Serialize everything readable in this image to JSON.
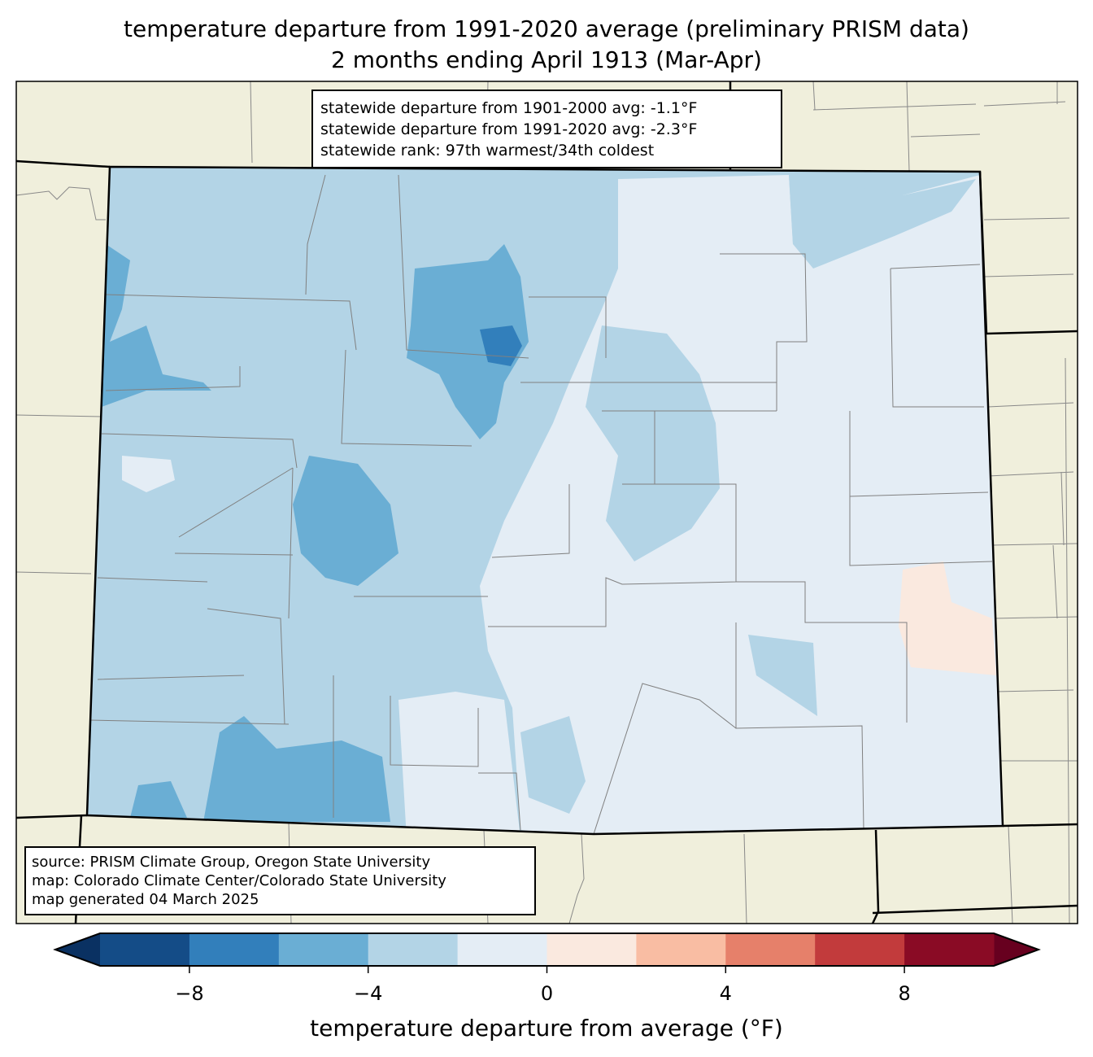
{
  "title": {
    "line1": "temperature departure from 1991-2020 average (preliminary PRISM data)",
    "line2": "2 months ending April 1913 (Mar-Apr)"
  },
  "stats_box": {
    "line1": "statewide departure from 1901-2000 avg: -1.1°F",
    "line2": "statewide departure from 1991-2020 avg: -2.3°F",
    "line3": "statewide rank: 97th warmest/34th coldest"
  },
  "source_box": {
    "line1": "source: PRISM Climate Group, Oregon State University",
    "line2": "map: Colorado Climate Center/Colorado State University",
    "line3": "map generated 04 March 2025"
  },
  "colorbar": {
    "label": "temperature departure from average (°F)",
    "range": [
      -10,
      10
    ],
    "bins": [
      -10,
      -8,
      -6,
      -4,
      -2,
      0,
      2,
      4,
      6,
      8,
      10
    ],
    "colors": [
      "#144c87",
      "#327fbb",
      "#6aaed4",
      "#b3d4e6",
      "#e4edf5",
      "#fae9df",
      "#f9bda3",
      "#e6806a",
      "#c23b3c",
      "#8a0b25"
    ],
    "under_color": "#0a3162",
    "over_color": "#67001f",
    "ticks": [
      {
        "value": -8,
        "label": "−8"
      },
      {
        "value": -4,
        "label": "−4"
      },
      {
        "value": 0,
        "label": "0"
      },
      {
        "value": 4,
        "label": "4"
      },
      {
        "value": 8,
        "label": "8"
      }
    ]
  },
  "map_colors": {
    "land": "#f0efdc",
    "county_line": "#808080"
  }
}
